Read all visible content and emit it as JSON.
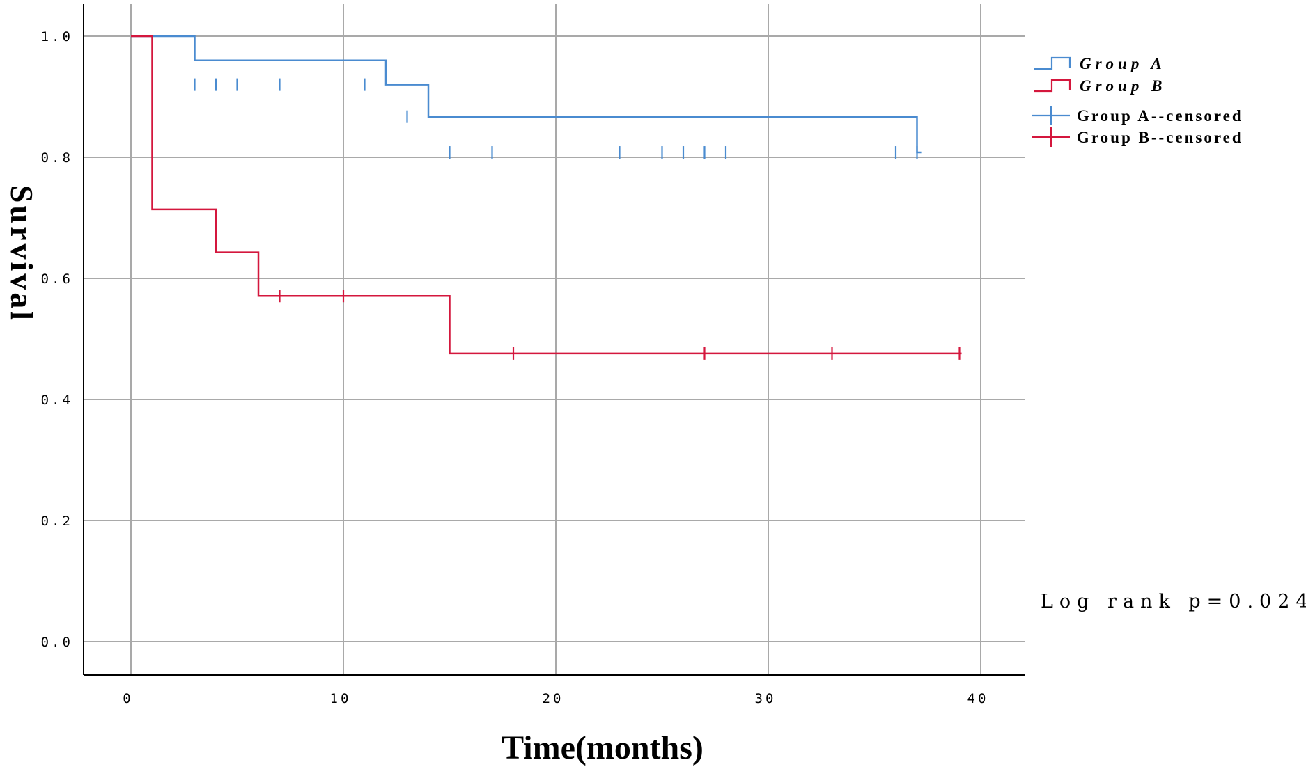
{
  "chart_data": {
    "type": "line",
    "step": "post",
    "ylabel": "Survival",
    "xlabel": "Time(months)",
    "xlim": [
      0,
      40
    ],
    "ylim": [
      0,
      1.0
    ],
    "x_ticks": [
      0,
      10,
      20,
      30,
      40
    ],
    "x_tick_labels": [
      "0",
      "10",
      "20",
      "30",
      "40"
    ],
    "y_ticks": [
      0.0,
      0.2,
      0.4,
      0.6,
      0.8,
      1.0
    ],
    "y_tick_labels": [
      "0.0",
      "0.2",
      "0.4",
      "0.6",
      "0.8",
      "1.0"
    ],
    "grid": true,
    "legend_position": "top-right",
    "series": [
      {
        "name": "Group A",
        "color": "#4a8bd0",
        "steps": [
          [
            0,
            1.0
          ],
          [
            3,
            0.96
          ],
          [
            12,
            0.92
          ],
          [
            14,
            0.867
          ],
          [
            37,
            0.808
          ]
        ],
        "end_x": 37.2,
        "censored": [
          [
            3,
            0.92
          ],
          [
            4,
            0.92
          ],
          [
            5,
            0.92
          ],
          [
            7,
            0.92
          ],
          [
            11,
            0.92
          ],
          [
            13,
            0.867
          ],
          [
            15,
            0.808
          ],
          [
            17,
            0.808
          ],
          [
            23,
            0.808
          ],
          [
            25,
            0.808
          ],
          [
            26,
            0.808
          ],
          [
            27,
            0.808
          ],
          [
            28,
            0.808
          ],
          [
            36,
            0.808
          ],
          [
            37,
            0.808
          ]
        ]
      },
      {
        "name": "Group B",
        "color": "#d4173d",
        "steps": [
          [
            0,
            1.0
          ],
          [
            1,
            0.714
          ],
          [
            4,
            0.643
          ],
          [
            6,
            0.571
          ],
          [
            15,
            0.476
          ],
          [
            39,
            0.476
          ]
        ],
        "end_x": 39.1,
        "censored": [
          [
            7,
            0.571
          ],
          [
            10,
            0.571
          ],
          [
            18,
            0.476
          ],
          [
            27,
            0.476
          ],
          [
            33,
            0.476
          ],
          [
            39,
            0.476
          ]
        ]
      }
    ],
    "legend": [
      {
        "label": "Group A",
        "kind": "line",
        "series": 0
      },
      {
        "label": "Group B",
        "kind": "line",
        "series": 1
      },
      {
        "label": "Group A--censored",
        "kind": "censor",
        "series": 0
      },
      {
        "label": "Group B--censored",
        "kind": "censor",
        "series": 1
      }
    ],
    "annotation": "Log rank p=0.024"
  }
}
